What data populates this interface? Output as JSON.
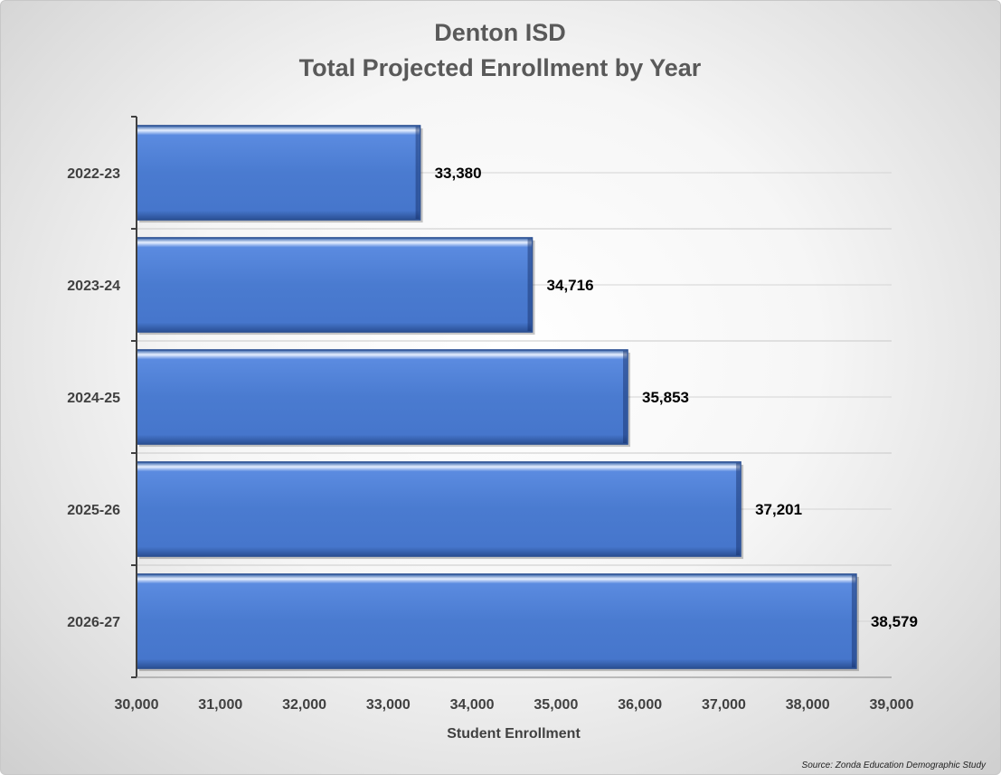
{
  "chart_data": {
    "type": "bar",
    "orientation": "horizontal",
    "title": "Denton ISD",
    "subtitle": "Total Projected Enrollment by Year",
    "categories": [
      "2022-23",
      "2023-24",
      "2024-25",
      "2025-26",
      "2026-27"
    ],
    "values": [
      33380,
      34716,
      35853,
      37201,
      38579
    ],
    "data_labels": [
      "33,380",
      "34,716",
      "35,853",
      "37,201",
      "38,579"
    ],
    "xlabel": "Student Enrollment",
    "ylabel": "",
    "xlim": [
      30000,
      39000
    ],
    "x_ticks": [
      30000,
      31000,
      32000,
      33000,
      34000,
      35000,
      36000,
      37000,
      38000,
      39000
    ],
    "x_tick_labels": [
      "30,000",
      "31,000",
      "32,000",
      "33,000",
      "34,000",
      "35,000",
      "36,000",
      "37,000",
      "38,000",
      "39,000"
    ],
    "grid": true,
    "legend": "none",
    "bar_color": "#4a7bd0",
    "source": "Source: Zonda Education Demographic Study"
  }
}
